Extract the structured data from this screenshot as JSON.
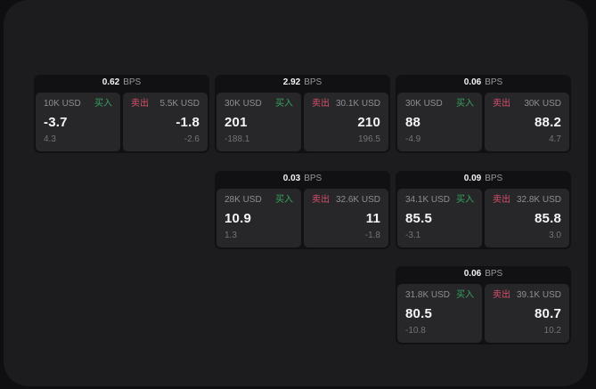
{
  "labels": {
    "bps_unit": "BPS",
    "buy": "买入",
    "sell": "卖出"
  },
  "colors": {
    "page_bg": "#0f0f11",
    "board_bg": "#1c1c1e",
    "card_bg": "#111113",
    "tile_bg": "#27272a",
    "buy_green": "#35a35d",
    "sell_red": "#d64f68",
    "value_white": "#f5f5f7",
    "label_gray": "#8e8e93",
    "minor_gray": "#737378"
  },
  "cards": [
    {
      "bps": "0.62",
      "buy": {
        "size": "10K USD",
        "price": "-3.7",
        "change": "4.3"
      },
      "sell": {
        "size": "5.5K USD",
        "price": "-1.8",
        "change": "-2.6"
      }
    },
    {
      "bps": "2.92",
      "buy": {
        "size": "30K USD",
        "price": "201",
        "change": "-188.1"
      },
      "sell": {
        "size": "30.1K USD",
        "price": "210",
        "change": "196.5"
      }
    },
    {
      "bps": "0.06",
      "buy": {
        "size": "30K USD",
        "price": "88",
        "change": "-4.9"
      },
      "sell": {
        "size": "30K USD",
        "price": "88.2",
        "change": "4.7"
      }
    },
    {
      "bps": "0.03",
      "buy": {
        "size": "28K USD",
        "price": "10.9",
        "change": "1.3"
      },
      "sell": {
        "size": "32.6K USD",
        "price": "11",
        "change": "-1.8"
      }
    },
    {
      "bps": "0.09",
      "buy": {
        "size": "34.1K USD",
        "price": "85.5",
        "change": "-3.1"
      },
      "sell": {
        "size": "32.8K USD",
        "price": "85.8",
        "change": "3.0"
      }
    },
    {
      "bps": "0.06",
      "buy": {
        "size": "31.8K USD",
        "price": "80.5",
        "change": "-10.8"
      },
      "sell": {
        "size": "39.1K USD",
        "price": "80.7",
        "change": "10.2"
      }
    }
  ]
}
